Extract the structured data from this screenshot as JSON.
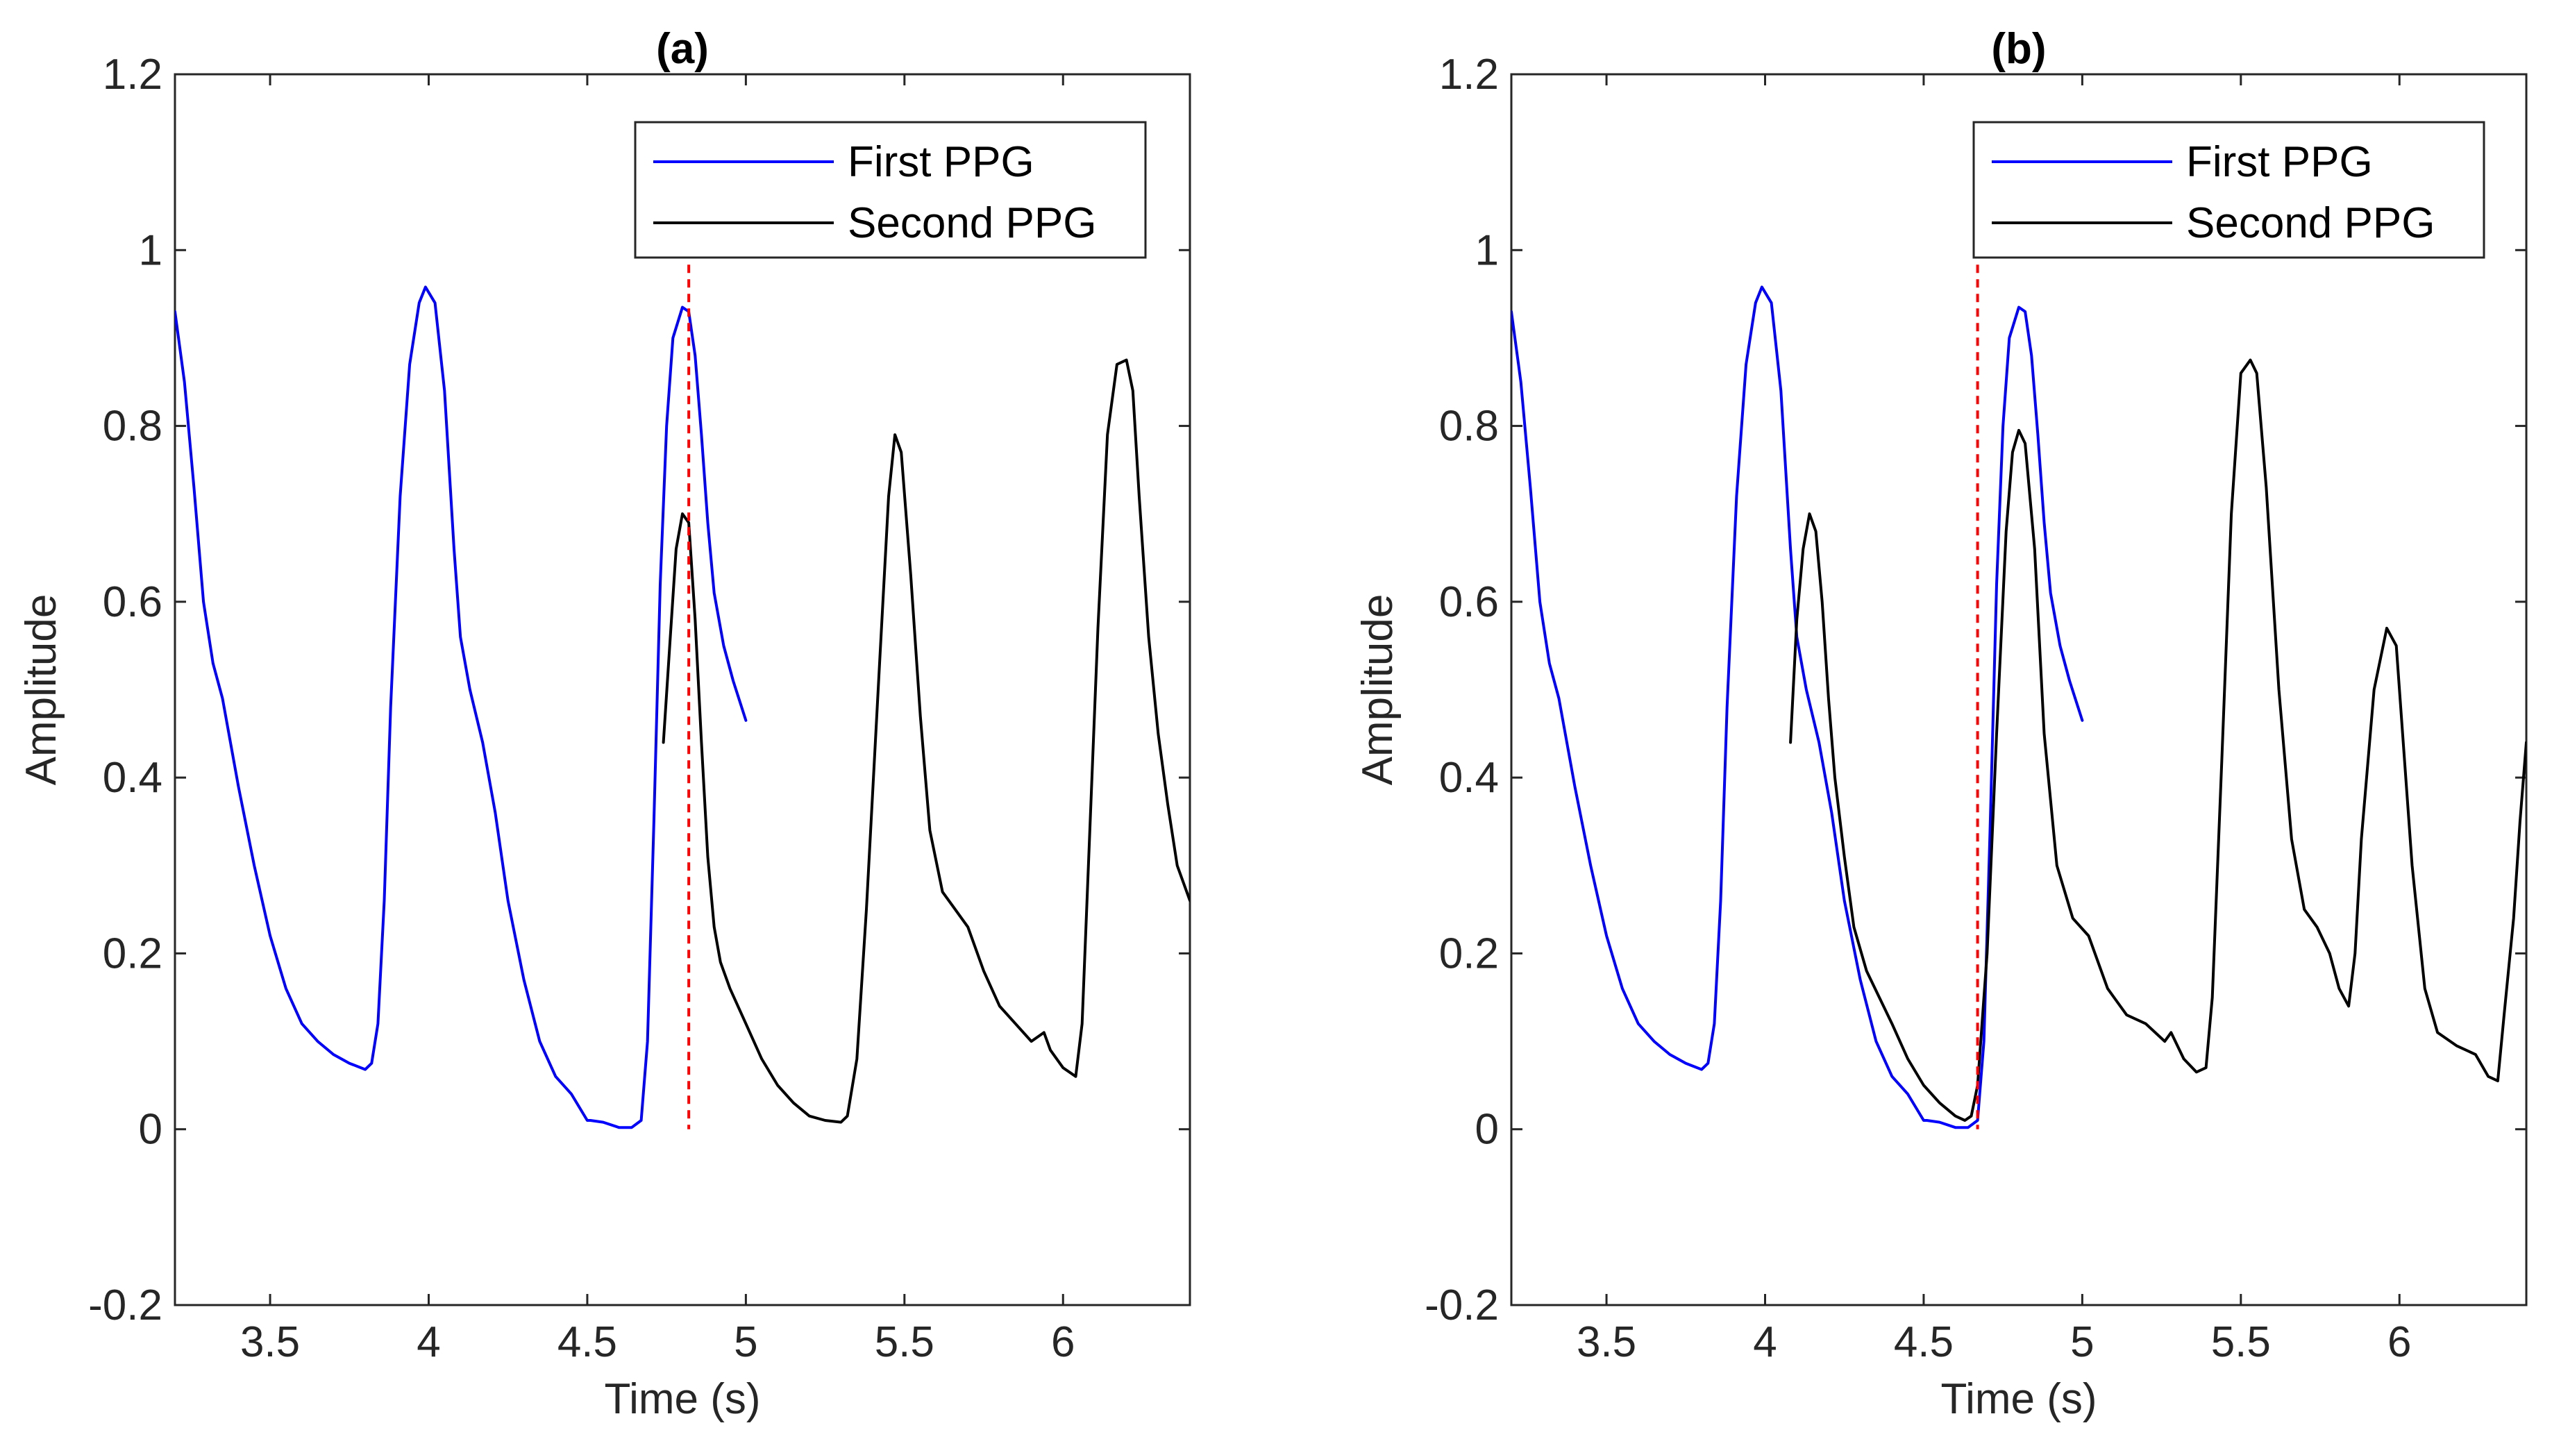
{
  "chart_data": [
    {
      "type": "line",
      "title": "(a)",
      "xlabel": "Time (s)",
      "ylabel": "Amplitude",
      "xlim": [
        3.2,
        6.4
      ],
      "ylim": [
        -0.2,
        1.2
      ],
      "xticks": [
        3.5,
        4,
        4.5,
        5,
        5.5,
        6
      ],
      "xtick_labels": [
        "3.5",
        "4",
        "4.5",
        "5",
        "5.5",
        "6"
      ],
      "yticks": [
        -0.2,
        0,
        0.2,
        0.4,
        0.6,
        0.8,
        1,
        1.2
      ],
      "ytick_labels": [
        "-0.2",
        "0",
        "0.2",
        "0.4",
        "0.6",
        "0.8",
        "1",
        "1.2"
      ],
      "legend": {
        "location": "top-right",
        "entries": [
          "First PPG",
          "Second PPG"
        ]
      },
      "vline": {
        "x": 4.82,
        "color": "#ff0000",
        "style": "dashed"
      },
      "series": [
        {
          "name": "First PPG",
          "color": "#0000ff",
          "x": [
            3.2,
            3.23,
            3.26,
            3.29,
            3.32,
            3.35,
            3.4,
            3.45,
            3.5,
            3.55,
            3.6,
            3.65,
            3.7,
            3.75,
            3.8,
            3.82,
            3.84,
            3.86,
            3.88,
            3.91,
            3.94,
            3.97,
            3.99,
            4.02,
            4.05,
            4.08,
            4.1,
            4.13,
            4.17,
            4.21,
            4.25,
            4.3,
            4.35,
            4.4,
            4.45,
            4.5,
            4.51,
            4.55,
            4.6,
            4.64,
            4.67,
            4.69,
            4.71,
            4.73,
            4.75,
            4.77,
            4.8,
            4.82,
            4.84,
            4.86,
            4.88,
            4.9,
            4.93,
            4.96,
            5.0
          ],
          "y": [
            0.93,
            0.85,
            0.73,
            0.6,
            0.53,
            0.49,
            0.39,
            0.3,
            0.22,
            0.16,
            0.12,
            0.1,
            0.085,
            0.075,
            0.068,
            0.075,
            0.12,
            0.26,
            0.48,
            0.72,
            0.87,
            0.94,
            0.958,
            0.94,
            0.84,
            0.66,
            0.56,
            0.5,
            0.44,
            0.36,
            0.26,
            0.17,
            0.1,
            0.06,
            0.04,
            0.01,
            0.01,
            0.008,
            0.002,
            0.002,
            0.01,
            0.1,
            0.35,
            0.62,
            0.8,
            0.9,
            0.935,
            0.93,
            0.88,
            0.79,
            0.69,
            0.61,
            0.55,
            0.51,
            0.465
          ]
        },
        {
          "name": "Second PPG",
          "color": "#000000",
          "x": [
            4.74,
            4.76,
            4.78,
            4.8,
            4.82,
            4.84,
            4.86,
            4.88,
            4.9,
            4.92,
            4.95,
            5.0,
            5.05,
            5.1,
            5.15,
            5.2,
            5.25,
            5.3,
            5.32,
            5.35,
            5.38,
            5.42,
            5.45,
            5.47,
            5.49,
            5.52,
            5.55,
            5.58,
            5.62,
            5.66,
            5.7,
            5.75,
            5.8,
            5.85,
            5.9,
            5.94,
            5.96,
            6.0,
            6.04,
            6.06,
            6.08,
            6.11,
            6.14,
            6.17,
            6.2,
            6.22,
            6.24,
            6.27,
            6.3,
            6.33,
            6.36,
            6.4
          ],
          "y": [
            0.44,
            0.55,
            0.66,
            0.7,
            0.69,
            0.58,
            0.44,
            0.31,
            0.23,
            0.19,
            0.16,
            0.12,
            0.08,
            0.05,
            0.03,
            0.015,
            0.01,
            0.008,
            0.015,
            0.08,
            0.25,
            0.52,
            0.72,
            0.79,
            0.77,
            0.63,
            0.47,
            0.34,
            0.27,
            0.25,
            0.23,
            0.18,
            0.14,
            0.12,
            0.1,
            0.11,
            0.09,
            0.07,
            0.06,
            0.12,
            0.3,
            0.57,
            0.79,
            0.87,
            0.875,
            0.84,
            0.72,
            0.56,
            0.45,
            0.37,
            0.3,
            0.26
          ]
        }
      ]
    },
    {
      "type": "line",
      "title": "(b)",
      "xlabel": "Time (s)",
      "ylabel": "Amplitude",
      "xlim": [
        3.2,
        6.4
      ],
      "ylim": [
        -0.2,
        1.2
      ],
      "xticks": [
        3.5,
        4,
        4.5,
        5,
        5.5,
        6
      ],
      "xtick_labels": [
        "3.5",
        "4",
        "4.5",
        "5",
        "5.5",
        "6"
      ],
      "yticks": [
        -0.2,
        0,
        0.2,
        0.4,
        0.6,
        0.8,
        1,
        1.2
      ],
      "ytick_labels": [
        "-0.2",
        "0",
        "0.2",
        "0.4",
        "0.6",
        "0.8",
        "1",
        "1.2"
      ],
      "legend": {
        "location": "top-right",
        "entries": [
          "First PPG",
          "Second PPG"
        ]
      },
      "vline": {
        "x": 4.67,
        "color": "#ff0000",
        "style": "dashed"
      },
      "series": [
        {
          "name": "First PPG",
          "color": "#0000ff",
          "x": [
            3.2,
            3.23,
            3.26,
            3.29,
            3.32,
            3.35,
            3.4,
            3.45,
            3.5,
            3.55,
            3.6,
            3.65,
            3.7,
            3.75,
            3.8,
            3.82,
            3.84,
            3.86,
            3.88,
            3.91,
            3.94,
            3.97,
            3.99,
            4.02,
            4.05,
            4.08,
            4.1,
            4.13,
            4.17,
            4.21,
            4.25,
            4.3,
            4.35,
            4.4,
            4.45,
            4.5,
            4.51,
            4.55,
            4.6,
            4.64,
            4.67,
            4.69,
            4.71,
            4.73,
            4.75,
            4.77,
            4.8,
            4.82,
            4.84,
            4.86,
            4.88,
            4.9,
            4.93,
            4.96,
            5.0
          ],
          "y": [
            0.93,
            0.85,
            0.73,
            0.6,
            0.53,
            0.49,
            0.39,
            0.3,
            0.22,
            0.16,
            0.12,
            0.1,
            0.085,
            0.075,
            0.068,
            0.075,
            0.12,
            0.26,
            0.48,
            0.72,
            0.87,
            0.94,
            0.958,
            0.94,
            0.84,
            0.66,
            0.56,
            0.5,
            0.44,
            0.36,
            0.26,
            0.17,
            0.1,
            0.06,
            0.04,
            0.01,
            0.01,
            0.008,
            0.002,
            0.002,
            0.01,
            0.1,
            0.35,
            0.62,
            0.8,
            0.9,
            0.935,
            0.93,
            0.88,
            0.79,
            0.69,
            0.61,
            0.55,
            0.51,
            0.465
          ]
        },
        {
          "name": "Second PPG",
          "color": "#000000",
          "x": [
            4.08,
            4.1,
            4.12,
            4.14,
            4.16,
            4.18,
            4.2,
            4.22,
            4.25,
            4.28,
            4.32,
            4.36,
            4.4,
            4.45,
            4.5,
            4.55,
            4.6,
            4.63,
            4.65,
            4.67,
            4.7,
            4.73,
            4.76,
            4.78,
            4.8,
            4.82,
            4.85,
            4.88,
            4.92,
            4.97,
            5.02,
            5.08,
            5.14,
            5.2,
            5.26,
            5.28,
            5.32,
            5.36,
            5.39,
            5.41,
            5.44,
            5.47,
            5.5,
            5.53,
            5.55,
            5.58,
            5.62,
            5.66,
            5.7,
            5.74,
            5.78,
            5.81,
            5.84,
            5.86,
            5.88,
            5.92,
            5.96,
            5.99,
            6.01,
            6.04,
            6.08,
            6.12,
            6.18,
            6.24,
            6.28,
            6.31,
            6.33,
            6.36,
            6.38,
            6.4
          ],
          "y": [
            0.44,
            0.58,
            0.66,
            0.7,
            0.68,
            0.6,
            0.49,
            0.4,
            0.31,
            0.23,
            0.18,
            0.15,
            0.12,
            0.08,
            0.05,
            0.03,
            0.015,
            0.01,
            0.015,
            0.05,
            0.2,
            0.45,
            0.68,
            0.77,
            0.795,
            0.78,
            0.66,
            0.45,
            0.3,
            0.24,
            0.22,
            0.16,
            0.13,
            0.12,
            0.1,
            0.11,
            0.08,
            0.065,
            0.07,
            0.15,
            0.42,
            0.7,
            0.86,
            0.875,
            0.86,
            0.73,
            0.5,
            0.33,
            0.25,
            0.23,
            0.2,
            0.16,
            0.14,
            0.2,
            0.33,
            0.5,
            0.57,
            0.55,
            0.45,
            0.3,
            0.16,
            0.11,
            0.095,
            0.085,
            0.06,
            0.055,
            0.13,
            0.24,
            0.35,
            0.44
          ]
        }
      ]
    }
  ]
}
